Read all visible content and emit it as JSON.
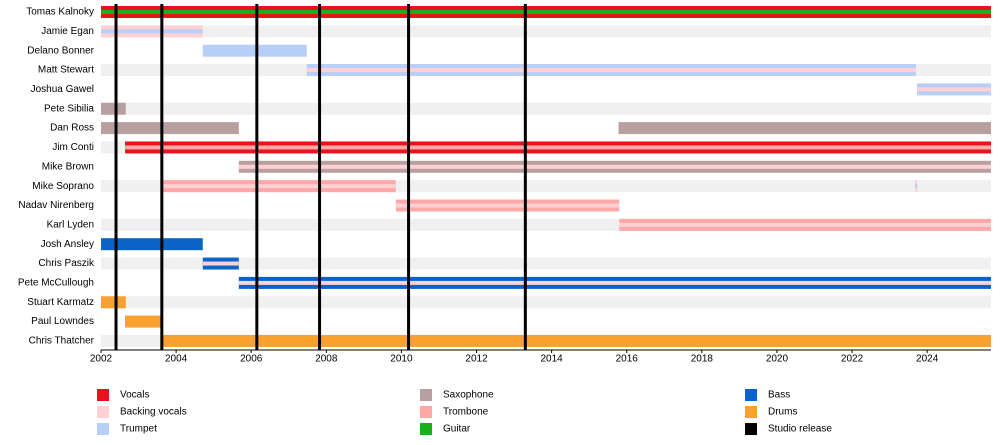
{
  "chart_data": {
    "type": "timeline",
    "members": [
      "Tomas Kalnoky",
      "Jamie Egan",
      "Delano Bonner",
      "Matt Stewart",
      "Joshua Gawel",
      "Pete Sibilia",
      "Dan Ross",
      "Jim Conti",
      "Mike Brown",
      "Mike Soprano",
      "Nadav Nirenberg",
      "Karl Lyden",
      "Josh Ansley",
      "Chris Paszik",
      "Pete McCullough",
      "Stuart Karmatz",
      "Paul Lowndes",
      "Chris Thatcher"
    ],
    "legend": [
      {
        "name": "Vocals",
        "color": "#e8141b"
      },
      {
        "name": "Backing vocals",
        "color": "#ffd0d4"
      },
      {
        "name": "Trumpet",
        "color": "#b8d0f8"
      },
      {
        "name": "Saxophone",
        "color": "#b9a0a0"
      },
      {
        "name": "Trombone",
        "color": "#ffa8a8"
      },
      {
        "name": "Guitar",
        "color": "#19b019"
      },
      {
        "name": "Bass",
        "color": "#0a64c8"
      },
      {
        "name": "Drums",
        "color": "#f8a030"
      },
      {
        "name": "Studio release",
        "color": "#000000"
      }
    ],
    "bars": [
      {
        "row": 0,
        "role": "Vocals",
        "stripe": "Guitar",
        "start": 2002,
        "end": 2025.7
      },
      {
        "row": 1,
        "role": "Backing vocals",
        "stripe": "Trumpet",
        "start": 2002,
        "end": 2004.71
      },
      {
        "row": 2,
        "role": "Trumpet",
        "start": 2004.71,
        "end": 2007.48
      },
      {
        "row": 3,
        "role": "Trumpet",
        "stripe": "Backing vocals",
        "start": 2007.48,
        "end": 2023.7
      },
      {
        "row": 4,
        "role": "Trumpet",
        "stripe": "Backing vocals",
        "start": 2023.73,
        "end": 2025.7
      },
      {
        "row": 5,
        "role": "Saxophone",
        "start": 2002,
        "end": 2002.66
      },
      {
        "row": 6,
        "role": "Saxophone",
        "start": 2002,
        "end": 2005.67
      },
      {
        "row": 6,
        "role": "Saxophone",
        "start": 2015.78,
        "end": 2025.7
      },
      {
        "row": 7,
        "role": "Vocals",
        "stripe": "Trombone",
        "start": 2002.64,
        "end": 2025.7
      },
      {
        "row": 8,
        "role": "Saxophone",
        "stripe": "Backing vocals",
        "start": 2005.67,
        "end": 2025.7
      },
      {
        "row": 9,
        "role": "Trombone",
        "stripe": "Backing vocals",
        "start": 2003.62,
        "end": 2009.85
      },
      {
        "row": 9,
        "role": "Backing vocals",
        "stripe": "Trumpet",
        "start": 2023.68,
        "end": 2023.74
      },
      {
        "row": 10,
        "role": "Trombone",
        "stripe": "Backing vocals",
        "start": 2009.85,
        "end": 2015.8
      },
      {
        "row": 11,
        "role": "Trombone",
        "stripe": "Backing vocals",
        "start": 2015.8,
        "end": 2025.7
      },
      {
        "row": 12,
        "role": "Bass",
        "start": 2002,
        "end": 2004.71
      },
      {
        "row": 13,
        "role": "Bass",
        "stripe": "Backing vocals",
        "start": 2004.71,
        "end": 2005.67
      },
      {
        "row": 14,
        "role": "Bass",
        "stripe": "Backing vocals",
        "start": 2005.67,
        "end": 2025.7
      },
      {
        "row": 15,
        "role": "Drums",
        "start": 2002,
        "end": 2002.66
      },
      {
        "row": 16,
        "role": "Drums",
        "start": 2002.64,
        "end": 2003.62
      },
      {
        "row": 17,
        "role": "Drums",
        "start": 2003.62,
        "end": 2025.7
      }
    ],
    "releases": [
      2002.4,
      2003.62,
      2006.15,
      2007.82,
      2010.19,
      2013.3
    ],
    "xlim": [
      2002,
      2025.7
    ],
    "xticks": [
      2002,
      2004,
      2006,
      2008,
      2010,
      2012,
      2014,
      2016,
      2018,
      2020,
      2022,
      2024
    ]
  }
}
